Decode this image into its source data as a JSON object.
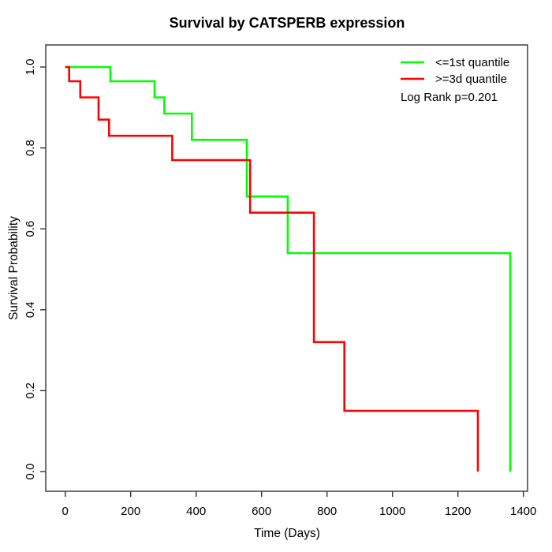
{
  "colors": {
    "background": "#ffffff",
    "axis": "#333333",
    "text": "#000000",
    "green_series": "#00ff00",
    "red_series": "#ff0000"
  },
  "chart_data": {
    "type": "line",
    "subtype": "kaplan-meier-step-curves",
    "title": "Survival by CATSPERB expression",
    "xlabel": "Time (Days)",
    "ylabel": "Survival Probability",
    "xlim": [
      0,
      1400
    ],
    "ylim": [
      0.0,
      1.0
    ],
    "grid": false,
    "legend_position": "top-right",
    "xticks": [
      {
        "v": 0,
        "label": "0"
      },
      {
        "v": 200,
        "label": "200"
      },
      {
        "v": 400,
        "label": "400"
      },
      {
        "v": 600,
        "label": "600"
      },
      {
        "v": 800,
        "label": "800"
      },
      {
        "v": 1000,
        "label": "1000"
      },
      {
        "v": 1200,
        "label": "1200"
      },
      {
        "v": 1400,
        "label": "1400"
      }
    ],
    "yticks": [
      {
        "v": 0.0,
        "label": "0.0"
      },
      {
        "v": 0.2,
        "label": "0.2"
      },
      {
        "v": 0.4,
        "label": "0.4"
      },
      {
        "v": 0.6,
        "label": "0.6"
      },
      {
        "v": 0.8,
        "label": "0.8"
      },
      {
        "v": 1.0,
        "label": "1.0"
      }
    ],
    "legend": [
      {
        "label": "<=1st quantile",
        "color": "#00ff00"
      },
      {
        "label": ">=3d quantile",
        "color": "#ff0000"
      }
    ],
    "annotation": "Log Rank p=0.201",
    "series": [
      {
        "name": "<=1st quantile",
        "color": "#00ff00",
        "points": [
          [
            0,
            1.0
          ],
          [
            138,
            1.0
          ],
          [
            138,
            0.965
          ],
          [
            273,
            0.965
          ],
          [
            273,
            0.925
          ],
          [
            303,
            0.925
          ],
          [
            303,
            0.885
          ],
          [
            387,
            0.885
          ],
          [
            387,
            0.82
          ],
          [
            555,
            0.82
          ],
          [
            555,
            0.68
          ],
          [
            680,
            0.68
          ],
          [
            680,
            0.54
          ],
          [
            1360,
            0.54
          ],
          [
            1360,
            0.0
          ]
        ]
      },
      {
        "name": ">=3d quantile",
        "color": "#ff0000",
        "points": [
          [
            0,
            1.0
          ],
          [
            12,
            1.0
          ],
          [
            12,
            0.965
          ],
          [
            46,
            0.965
          ],
          [
            46,
            0.925
          ],
          [
            102,
            0.925
          ],
          [
            102,
            0.87
          ],
          [
            134,
            0.87
          ],
          [
            134,
            0.83
          ],
          [
            327,
            0.83
          ],
          [
            327,
            0.77
          ],
          [
            565,
            0.77
          ],
          [
            565,
            0.64
          ],
          [
            760,
            0.64
          ],
          [
            760,
            0.32
          ],
          [
            853,
            0.32
          ],
          [
            853,
            0.15
          ],
          [
            1261,
            0.15
          ],
          [
            1261,
            0.0
          ]
        ]
      }
    ]
  }
}
